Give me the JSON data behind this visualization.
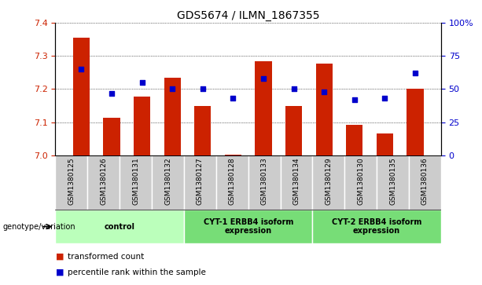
{
  "title": "GDS5674 / ILMN_1867355",
  "samples": [
    "GSM1380125",
    "GSM1380126",
    "GSM1380131",
    "GSM1380132",
    "GSM1380127",
    "GSM1380128",
    "GSM1380133",
    "GSM1380134",
    "GSM1380129",
    "GSM1380130",
    "GSM1380135",
    "GSM1380136"
  ],
  "bar_values": [
    7.355,
    7.113,
    7.178,
    7.235,
    7.148,
    7.003,
    7.285,
    7.148,
    7.278,
    7.092,
    7.065,
    7.2
  ],
  "dot_values": [
    65,
    47,
    55,
    50,
    50,
    43,
    58,
    50,
    48,
    42,
    43,
    62
  ],
  "ymin": 7.0,
  "ymax": 7.4,
  "yticks_left": [
    7.0,
    7.1,
    7.2,
    7.3,
    7.4
  ],
  "yticks_right": [
    0,
    25,
    50,
    75,
    100
  ],
  "bar_color": "#cc2200",
  "dot_color": "#0000cc",
  "bar_width": 0.55,
  "grp_configs": [
    [
      0,
      3,
      "control",
      "#bbffbb"
    ],
    [
      4,
      7,
      "CYT-1 ERBB4 isoform\nexpression",
      "#77dd77"
    ],
    [
      8,
      11,
      "CYT-2 ERBB4 isoform\nexpression",
      "#77dd77"
    ]
  ],
  "legend_items": [
    {
      "label": "transformed count",
      "color": "#cc2200"
    },
    {
      "label": "percentile rank within the sample",
      "color": "#0000cc"
    }
  ],
  "genotype_label": "genotype/variation",
  "tick_color_left": "#cc2200",
  "tick_color_right": "#0000cc",
  "bg_color": "#ffffff",
  "grid_color": "#333333",
  "cell_bg": "#cccccc",
  "cell_border": "#ffffff"
}
